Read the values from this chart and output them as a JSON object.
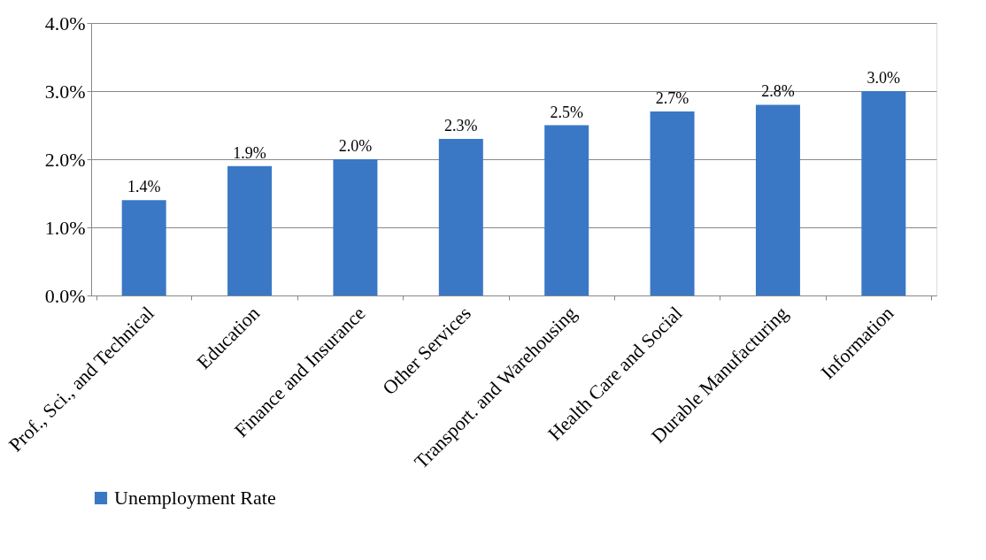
{
  "chart_data": {
    "type": "bar",
    "categories": [
      "Prof., Sci., and Technical",
      "Education",
      "Finance and Insurance",
      "Other Services",
      "Transport. and Warehousing",
      "Health Care and Social",
      "Durable Manufacturing",
      "Information"
    ],
    "series": [
      {
        "name": "Unemployment Rate",
        "color": "#3a78c6",
        "values": [
          1.4,
          1.9,
          2.0,
          2.3,
          2.5,
          2.7,
          2.8,
          3.0
        ],
        "value_labels": [
          "1.4%",
          "1.9%",
          "2.0%",
          "2.3%",
          "2.5%",
          "2.7%",
          "2.8%",
          "3.0%"
        ]
      }
    ],
    "ylim": [
      0,
      4
    ],
    "yticks": [
      {
        "value": 0,
        "label": "0.0%"
      },
      {
        "value": 1,
        "label": "1.0%"
      },
      {
        "value": 2,
        "label": "2.0%"
      },
      {
        "value": 3,
        "label": "3.0%"
      },
      {
        "value": 4,
        "label": "4.0%"
      }
    ],
    "grid": "y",
    "legend": "bottom"
  }
}
